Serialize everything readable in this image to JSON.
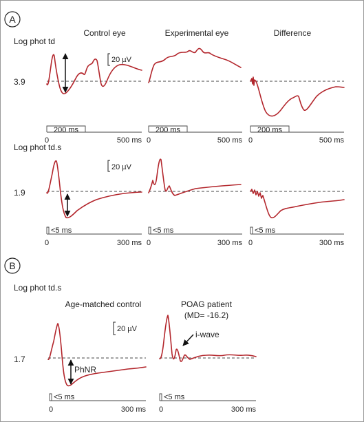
{
  "panel_a": {
    "badge": "A",
    "row1": {
      "intensity_label": "Log phot td",
      "level": "3.9",
      "titles": {
        "control": "Control eye",
        "experimental": "Experimental eye",
        "difference": "Difference"
      },
      "scale": "20 µV",
      "stim_label": "200 ms",
      "axis_start": "0",
      "axis_end": "500 ms"
    },
    "row2": {
      "intensity_label": "Log phot td.s",
      "level": "1.9",
      "scale": "20 µV",
      "stim_label": "<5 ms",
      "axis_start": "0",
      "axis_end": "300 ms"
    }
  },
  "panel_b": {
    "badge": "B",
    "intensity_label": "Log phot td.s",
    "level": "1.7",
    "titles": {
      "control": "Age-matched control",
      "patient": "POAG patient",
      "patient_md": "(MD= -16.2)"
    },
    "scale": "20 µV",
    "annotations": {
      "phnr": "PhNR",
      "iwave": "i-wave"
    },
    "stim_label": "<5 ms",
    "axis_start": "0",
    "axis_end": "300 ms"
  },
  "colors": {
    "trace": "#b3262c",
    "baseline": "#444444"
  }
}
